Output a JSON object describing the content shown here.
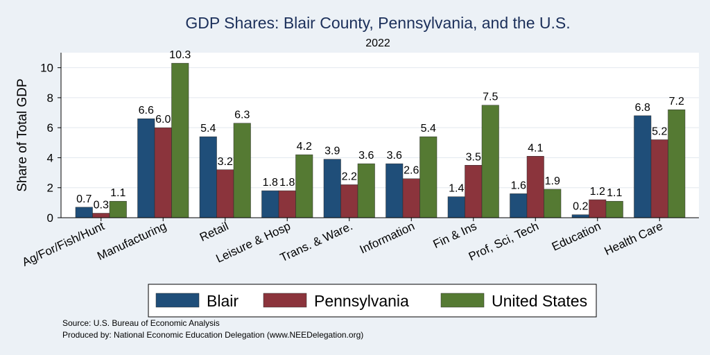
{
  "chart_data": {
    "type": "bar",
    "title": "GDP Shares: Blair County, Pennsylvania, and the U.S.",
    "subtitle": "2022",
    "xlabel": "",
    "ylabel": "Share of Total GDP",
    "ylim": [
      0,
      11
    ],
    "yticks": [
      0,
      2,
      4,
      6,
      8,
      10
    ],
    "grid": true,
    "legend_position": "bottom",
    "categories": [
      "Ag/For/Fish/Hunt",
      "Manufacturing",
      "Retail",
      "Leisure & Hosp",
      "Trans. & Ware.",
      "Information",
      "Fin & Ins",
      "Prof, Sci, Tech",
      "Education",
      "Health Care"
    ],
    "series": [
      {
        "name": "Blair",
        "color": "#1f4e79",
        "values": [
          0.7,
          6.6,
          5.4,
          1.8,
          3.9,
          3.6,
          1.4,
          1.6,
          0.2,
          6.8
        ]
      },
      {
        "name": "Pennsylvania",
        "color": "#8b343c",
        "values": [
          0.3,
          6.0,
          3.2,
          1.8,
          2.2,
          2.6,
          3.5,
          4.1,
          1.2,
          5.2
        ]
      },
      {
        "name": "United States",
        "color": "#557a33",
        "values": [
          1.1,
          10.3,
          6.3,
          4.2,
          3.6,
          5.4,
          7.5,
          1.9,
          1.1,
          7.2
        ]
      }
    ]
  },
  "notes": {
    "source": "Source: U.S. Bureau of Economic Analysis",
    "produced_by": "Produced by: National Economic Education Delegation (www.NEEDelegation.org)"
  }
}
